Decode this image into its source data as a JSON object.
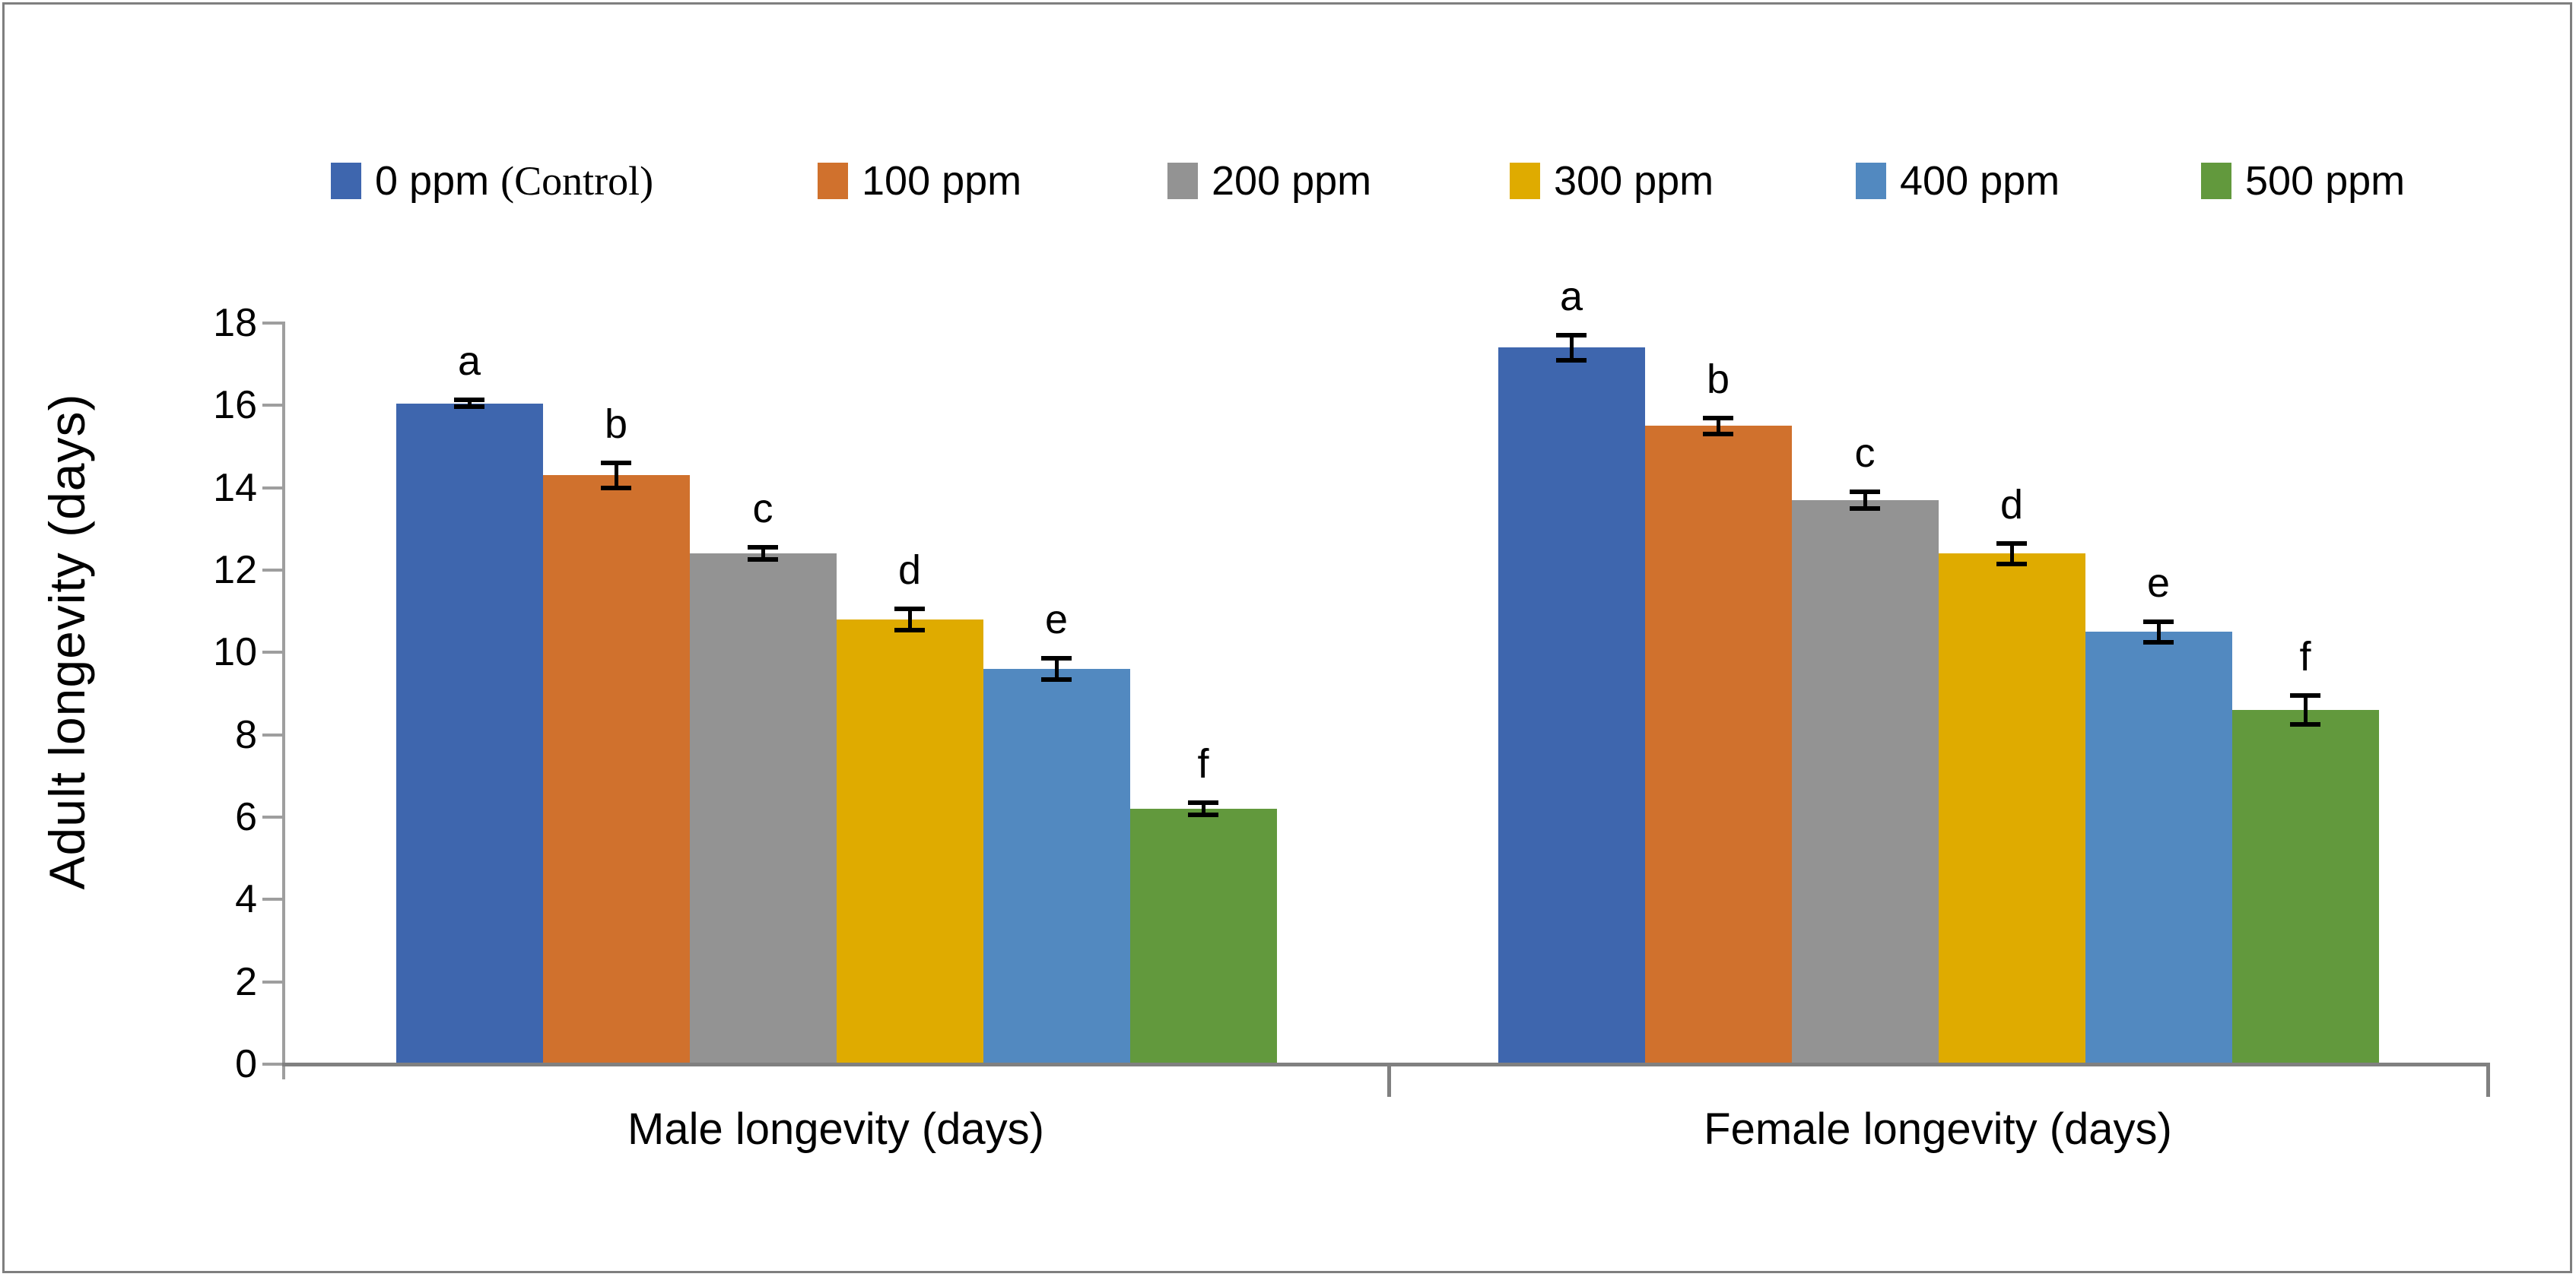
{
  "chart_data": {
    "type": "bar",
    "title": "",
    "ylabel": "Adult longevity (days)",
    "ylim": [
      0,
      18
    ],
    "yticks": [
      "0",
      "2",
      "4",
      "6",
      "8",
      "10",
      "12",
      "14",
      "16",
      "18"
    ],
    "grid": false,
    "legend_position": "top",
    "groups": [
      "Male longevity (days)",
      "Female longevity (days)"
    ],
    "series": [
      {
        "name": "0 ppm (Control)",
        "color": "#3e66ae",
        "values": [
          16.05,
          17.4
        ],
        "errors": [
          0.08,
          0.3
        ],
        "letters": [
          "a",
          "a"
        ]
      },
      {
        "name": "100 ppm",
        "color": "#d0712d",
        "values": [
          14.3,
          15.5
        ],
        "errors": [
          0.3,
          0.2
        ],
        "letters": [
          "b",
          "b"
        ]
      },
      {
        "name": "200 ppm",
        "color": "#939393",
        "values": [
          12.4,
          13.7
        ],
        "errors": [
          0.15,
          0.2
        ],
        "letters": [
          "c",
          "c"
        ]
      },
      {
        "name": "300 ppm",
        "color": "#dfab00",
        "values": [
          10.8,
          12.4
        ],
        "errors": [
          0.25,
          0.25
        ],
        "letters": [
          "d",
          "d"
        ]
      },
      {
        "name": "400 ppm",
        "color": "#5289c0",
        "values": [
          9.6,
          10.5
        ],
        "errors": [
          0.25,
          0.25
        ],
        "letters": [
          "e",
          "e"
        ]
      },
      {
        "name": "500 ppm",
        "color": "#62993d",
        "values": [
          6.2,
          8.6
        ],
        "errors": [
          0.15,
          0.35
        ],
        "letters": [
          "f",
          "f"
        ]
      }
    ],
    "colors": {
      "axis_line": "#9e9e9e",
      "baseline": "#808080",
      "error_bar": "#000000",
      "text": "#000000",
      "page_border": "#7f7f7f",
      "background": "#ffffff"
    }
  }
}
